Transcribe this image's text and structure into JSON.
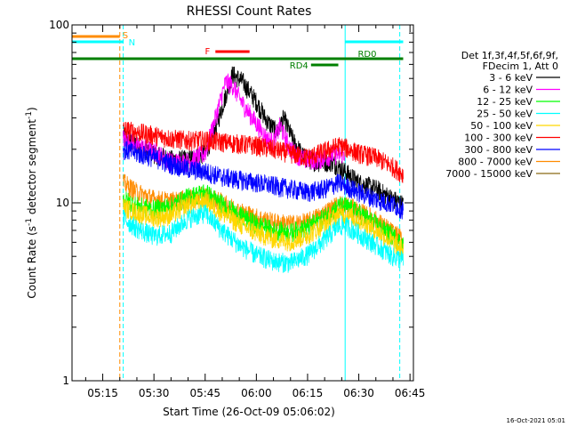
{
  "footer_stamp": "16-Oct-2021 05:01",
  "chart_data": {
    "type": "line",
    "title": "RHESSI Count Rates",
    "xlabel": "Start Time (26-Oct-09 05:06:02)",
    "ylabel": "Count Rate (s",
    "ylabel_sup": "-1",
    "ylabel_tail": " detector segment",
    "ylabel_sup2": "-1",
    "ylabel_close": ")",
    "yscale": "log",
    "ylim": [
      1,
      100
    ],
    "xlim": [
      "05:06",
      "06:46"
    ],
    "x_ticks": [
      "05:15",
      "05:30",
      "05:45",
      "06:00",
      "06:15",
      "06:30",
      "06:45"
    ],
    "y_ticks": [
      "1",
      "10",
      "100"
    ],
    "legend": {
      "placement": "right",
      "header": [
        "Det 1f,3f,4f,5f,6f,9f,",
        "FDecim 1, Att 0"
      ],
      "entries": [
        "3 - 6 keV",
        "6 - 12 keV",
        "12 - 25 keV",
        "25 - 50 keV",
        "50 - 100 keV",
        "100 - 300 keV",
        "300 - 800 keV",
        "800 - 7000 keV",
        "7000 - 15000 keV"
      ],
      "colors": [
        "#000000",
        "#ff00ff",
        "#00ff00",
        "#00ffff",
        "#ffd700",
        "#ff0000",
        "#0000ff",
        "#ff8c00",
        "#8b6914"
      ]
    },
    "flags": [
      {
        "label": "S",
        "start": "05:06",
        "end": "05:20",
        "color": "#ff8c00"
      },
      {
        "label": "N",
        "start": "05:06",
        "end": "05:21",
        "color": "#00ffff"
      },
      {
        "label": "F",
        "start": "05:48",
        "end": "05:58",
        "color": "#ff0000"
      },
      {
        "label": "RD0",
        "start": "05:06",
        "end": "06:43",
        "color": "#008000"
      },
      {
        "label": "RD4",
        "start": "06:16",
        "end": "06:24",
        "color": "#008000"
      }
    ],
    "vlines": [
      {
        "time": "05:20",
        "color": "#ff8c00",
        "style": "dashed"
      },
      {
        "time": "05:21",
        "color": "#00ffff",
        "style": "dashed"
      },
      {
        "time": "06:42",
        "color": "#00ffff",
        "style": "dashed"
      },
      {
        "time": "05:06",
        "color": "#00ffff",
        "style": "solid"
      },
      {
        "time": "06:26",
        "color": "#00ffff",
        "style": "solid"
      }
    ],
    "series": [
      {
        "name": "3 - 6 keV",
        "color": "#000000",
        "x": [
          "05:21",
          "05:25",
          "05:30",
          "05:35",
          "05:40",
          "05:45",
          "05:48",
          "05:51",
          "05:53",
          "05:56",
          "06:00",
          "06:03",
          "06:06",
          "06:08",
          "06:11",
          "06:14",
          "06:18",
          "06:22",
          "06:26",
          "06:30",
          "06:35",
          "06:40",
          "06:43"
        ],
        "y": [
          24,
          21,
          19,
          17.5,
          17.5,
          19,
          26,
          40,
          53,
          48,
          37,
          29,
          25,
          30,
          22,
          18,
          17,
          17,
          15,
          13,
          12,
          10.5,
          9.8
        ]
      },
      {
        "name": "6 - 12 keV",
        "color": "#ff00ff",
        "x": [
          "05:21",
          "05:25",
          "05:30",
          "05:35",
          "05:40",
          "05:45",
          "05:48",
          "05:51",
          "05:53",
          "05:56",
          "06:00",
          "06:03",
          "06:05",
          "06:07",
          "06:10",
          "06:14",
          "06:18",
          "06:22",
          "06:26"
        ],
        "y": [
          23,
          21,
          19.5,
          17,
          17,
          19,
          30,
          48,
          46,
          36,
          28,
          23,
          22,
          27,
          20,
          17.5,
          17.5,
          18.5,
          19
        ]
      },
      {
        "name": "100 - 300 keV",
        "color": "#ff0000",
        "x": [
          "05:21",
          "05:25",
          "05:30",
          "05:35",
          "05:40",
          "05:45",
          "05:50",
          "05:55",
          "06:00",
          "06:05",
          "06:10",
          "06:15",
          "06:20",
          "06:24",
          "06:26",
          "06:30",
          "06:35",
          "06:40",
          "06:43"
        ],
        "y": [
          26,
          25,
          24,
          23,
          22.5,
          22.5,
          22,
          21.5,
          21,
          20,
          19,
          18,
          19.5,
          21,
          20.5,
          19,
          18,
          16,
          14.5
        ]
      },
      {
        "name": "300 - 800 keV",
        "color": "#0000ff",
        "x": [
          "05:21",
          "05:25",
          "05:30",
          "05:35",
          "05:40",
          "05:45",
          "05:50",
          "05:55",
          "06:00",
          "06:05",
          "06:10",
          "06:15",
          "06:20",
          "06:24",
          "06:26",
          "06:30",
          "06:35",
          "06:40",
          "06:43"
        ],
        "y": [
          20,
          19,
          18,
          16.5,
          15.5,
          15,
          14,
          13.5,
          13,
          12.5,
          12,
          11.5,
          12,
          13,
          12.5,
          11.5,
          10.5,
          9.8,
          9.2
        ]
      },
      {
        "name": "800 - 7000 keV",
        "color": "#ff8c00",
        "x": [
          "05:21",
          "05:25",
          "05:30",
          "05:35",
          "05:40",
          "05:45",
          "05:50",
          "05:55",
          "06:00",
          "06:05",
          "06:10",
          "06:15",
          "06:20",
          "06:24",
          "06:26",
          "06:30",
          "06:35",
          "06:40",
          "06:43"
        ],
        "y": [
          13,
          11.5,
          10.5,
          10.2,
          10.5,
          11,
          10,
          9,
          8.3,
          7.8,
          7.6,
          7.8,
          8.8,
          9.8,
          9.8,
          9,
          8,
          6.8,
          6.2
        ]
      },
      {
        "name": "12 - 25 keV",
        "color": "#00ff00",
        "x": [
          "05:21",
          "05:25",
          "05:30",
          "05:35",
          "05:40",
          "05:45",
          "05:50",
          "05:55",
          "06:00",
          "06:05",
          "06:10",
          "06:15",
          "06:20",
          "06:24",
          "06:26",
          "06:30",
          "06:35",
          "06:40",
          "06:43"
        ],
        "y": [
          10.5,
          9.6,
          9.2,
          9.6,
          10.8,
          11.5,
          9.8,
          8.5,
          7.6,
          7,
          6.8,
          7.3,
          8.3,
          9.5,
          9.6,
          8.8,
          7.6,
          6.5,
          5.8
        ]
      },
      {
        "name": "50 - 100 keV",
        "color": "#ffd700",
        "x": [
          "05:21",
          "05:25",
          "05:30",
          "05:35",
          "05:40",
          "05:45",
          "05:50",
          "05:55",
          "06:00",
          "06:05",
          "06:10",
          "06:15",
          "06:20",
          "06:24",
          "06:26",
          "06:30",
          "06:35",
          "06:40",
          "06:43"
        ],
        "y": [
          9.5,
          8.8,
          8.3,
          8.5,
          9.8,
          10.3,
          8.8,
          7.6,
          6.8,
          6.3,
          6.1,
          6.6,
          7.6,
          8.6,
          8.6,
          8,
          7,
          6,
          5.4
        ]
      },
      {
        "name": "25 - 50 keV",
        "color": "#00ffff",
        "x": [
          "05:21",
          "05:25",
          "05:30",
          "05:35",
          "05:40",
          "05:45",
          "05:50",
          "05:55",
          "06:00",
          "06:05",
          "06:10",
          "06:15",
          "06:20",
          "06:24",
          "06:26",
          "06:30",
          "06:35",
          "06:40",
          "06:43"
        ],
        "y": [
          8.2,
          7.2,
          6.5,
          6.8,
          8.2,
          8.8,
          7,
          5.8,
          5.1,
          4.7,
          4.6,
          5.1,
          6.2,
          7.4,
          7.5,
          6.7,
          5.8,
          5,
          4.8
        ]
      }
    ]
  }
}
